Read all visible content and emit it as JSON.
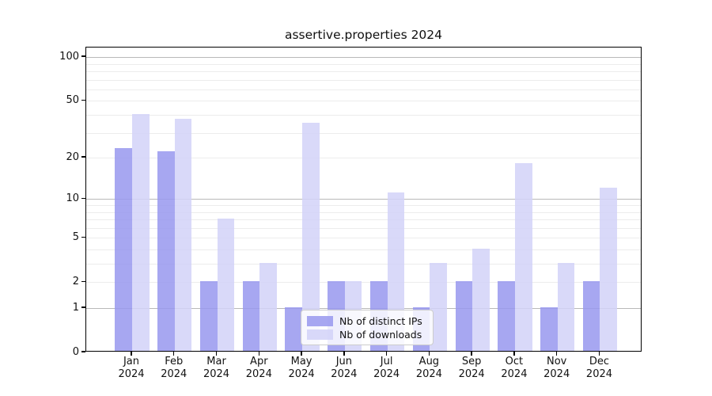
{
  "chart_data": {
    "type": "bar",
    "title": "assertive.properties 2024",
    "year": "2024",
    "months": [
      "Jan",
      "Feb",
      "Mar",
      "Apr",
      "May",
      "Jun",
      "Jul",
      "Aug",
      "Sep",
      "Oct",
      "Nov",
      "Dec"
    ],
    "categories": [
      "Jan 2024",
      "Feb 2024",
      "Mar 2024",
      "Apr 2024",
      "May 2024",
      "Jun 2024",
      "Jul 2024",
      "Aug 2024",
      "Sep 2024",
      "Oct 2024",
      "Nov 2024",
      "Dec 2024"
    ],
    "series": [
      {
        "name": "Nb of distinct IPs",
        "key": "distinct-ips",
        "color": "#9898ee",
        "alpha": 0.85,
        "values": [
          23,
          22,
          2,
          2,
          1,
          2,
          2,
          1,
          2,
          2,
          1,
          2
        ]
      },
      {
        "name": "Nb of downloads",
        "key": "downloads",
        "color": "#d2d2f8",
        "alpha": 0.85,
        "values": [
          40,
          37,
          7,
          3,
          35,
          2,
          11,
          3,
          4,
          18,
          3,
          12
        ]
      }
    ],
    "xlabel": "",
    "ylabel": "",
    "yscale": "log10(1+x)",
    "ylim": [
      0,
      116
    ],
    "yticks": [
      0,
      1,
      2,
      5,
      10,
      20,
      50,
      100
    ],
    "major_gridlines": [
      1,
      10,
      100
    ],
    "minor_gridlines": [
      2,
      3,
      4,
      5,
      6,
      7,
      8,
      9,
      20,
      30,
      40,
      50,
      60,
      70,
      80,
      90
    ],
    "grid": true,
    "legend_position": "lower center",
    "text_color": "#111111",
    "minor_grid_color": "#ececec",
    "major_grid_color": "#b9b9b9"
  }
}
